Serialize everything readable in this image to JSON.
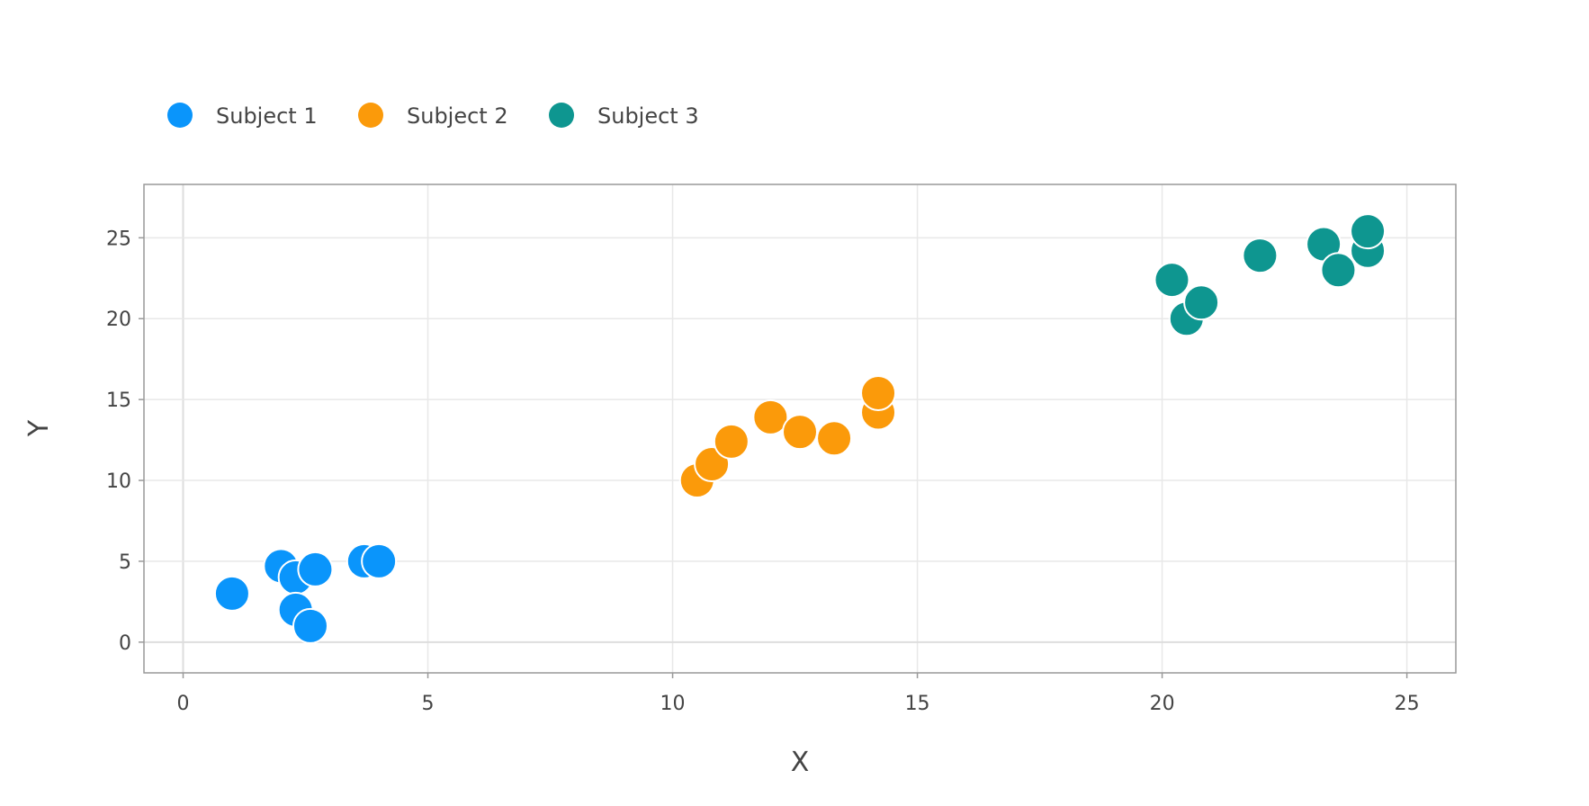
{
  "chart_data": {
    "type": "scatter",
    "title": "",
    "xlabel": "X",
    "ylabel": "Y",
    "xlim": [
      -0.8,
      26.0
    ],
    "ylim": [
      -1.9,
      28.3
    ],
    "xticks": [
      0,
      5,
      10,
      15,
      20,
      25
    ],
    "yticks": [
      0,
      5,
      10,
      15,
      20,
      25
    ],
    "grid": true,
    "legend_position": "top-left",
    "series": [
      {
        "name": "Subject 1",
        "color": "#0a95fb",
        "points": [
          {
            "x": 1.0,
            "y": 3.0
          },
          {
            "x": 2.0,
            "y": 4.7
          },
          {
            "x": 2.3,
            "y": 4.0
          },
          {
            "x": 2.7,
            "y": 4.5
          },
          {
            "x": 2.3,
            "y": 2.0
          },
          {
            "x": 2.6,
            "y": 1.0
          },
          {
            "x": 3.7,
            "y": 5.0
          },
          {
            "x": 4.0,
            "y": 5.0
          }
        ]
      },
      {
        "name": "Subject 2",
        "color": "#fb9a0a",
        "points": [
          {
            "x": 10.5,
            "y": 10.0
          },
          {
            "x": 10.8,
            "y": 11.0
          },
          {
            "x": 11.2,
            "y": 12.4
          },
          {
            "x": 12.0,
            "y": 13.9
          },
          {
            "x": 12.6,
            "y": 13.0
          },
          {
            "x": 13.3,
            "y": 12.6
          },
          {
            "x": 14.2,
            "y": 14.2
          },
          {
            "x": 14.2,
            "y": 15.4
          }
        ]
      },
      {
        "name": "Subject 3",
        "color": "#0e9690",
        "points": [
          {
            "x": 20.2,
            "y": 22.4
          },
          {
            "x": 20.5,
            "y": 20.0
          },
          {
            "x": 20.8,
            "y": 21.0
          },
          {
            "x": 22.0,
            "y": 23.9
          },
          {
            "x": 23.3,
            "y": 24.6
          },
          {
            "x": 23.6,
            "y": 23.0
          },
          {
            "x": 24.2,
            "y": 24.2
          },
          {
            "x": 24.2,
            "y": 25.4
          }
        ]
      }
    ]
  }
}
